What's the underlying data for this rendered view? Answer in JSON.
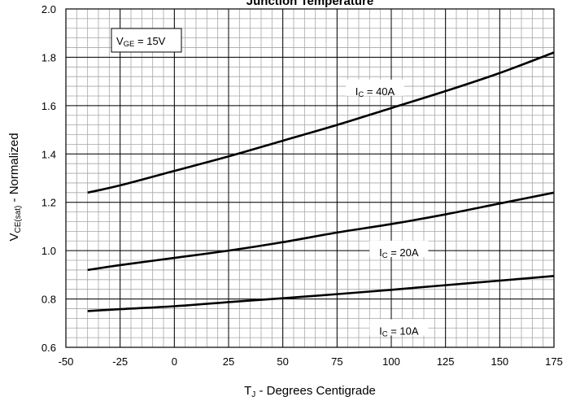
{
  "chart_data": {
    "type": "line",
    "title": "Junction Temperature",
    "xlabel": {
      "main": "T",
      "sub": "J",
      "rest": " - Degrees Centigrade"
    },
    "ylabel": {
      "main": "V",
      "sub": "CE(sat)",
      "rest": " - Normalized"
    },
    "xlim": [
      -50,
      175
    ],
    "ylim": [
      0.6,
      2.0
    ],
    "x_ticks": [
      -50,
      -25,
      0,
      25,
      50,
      75,
      100,
      125,
      150,
      175
    ],
    "y_ticks": [
      0.6,
      0.8,
      1.0,
      1.2,
      1.4,
      1.6,
      1.8,
      2.0
    ],
    "x_tick_labels": [
      "-50",
      "-25",
      "0",
      "25",
      "50",
      "75",
      "100",
      "125",
      "150",
      "175"
    ],
    "y_tick_labels": [
      "0.6",
      "0.8",
      "1.0",
      "1.2",
      "1.4",
      "1.6",
      "1.8",
      "2.0"
    ],
    "grid": true,
    "minor_grid": true,
    "annotation": {
      "main": "V",
      "sub": "GE",
      "rest": " = 15V"
    },
    "series": [
      {
        "name": {
          "main": "I",
          "sub": "C",
          "rest": " = 40A"
        },
        "x": [
          -40,
          -25,
          0,
          25,
          50,
          75,
          100,
          125,
          150,
          175
        ],
        "y": [
          1.24,
          1.27,
          1.33,
          1.39,
          1.455,
          1.52,
          1.59,
          1.66,
          1.735,
          1.82
        ]
      },
      {
        "name": {
          "main": "I",
          "sub": "C",
          "rest": " = 20A"
        },
        "x": [
          -40,
          -25,
          0,
          25,
          50,
          75,
          100,
          125,
          150,
          175
        ],
        "y": [
          0.92,
          0.94,
          0.97,
          1.0,
          1.035,
          1.075,
          1.11,
          1.15,
          1.195,
          1.24
        ]
      },
      {
        "name": {
          "main": "I",
          "sub": "C",
          "rest": " = 10A"
        },
        "x": [
          -40,
          -25,
          0,
          25,
          50,
          75,
          100,
          125,
          150,
          175
        ],
        "y": [
          0.75,
          0.758,
          0.77,
          0.787,
          0.803,
          0.82,
          0.838,
          0.857,
          0.876,
          0.895
        ]
      }
    ],
    "colors": {
      "line": "#000000",
      "major_grid": "#000000",
      "minor_grid": "#a6a6a6"
    }
  }
}
